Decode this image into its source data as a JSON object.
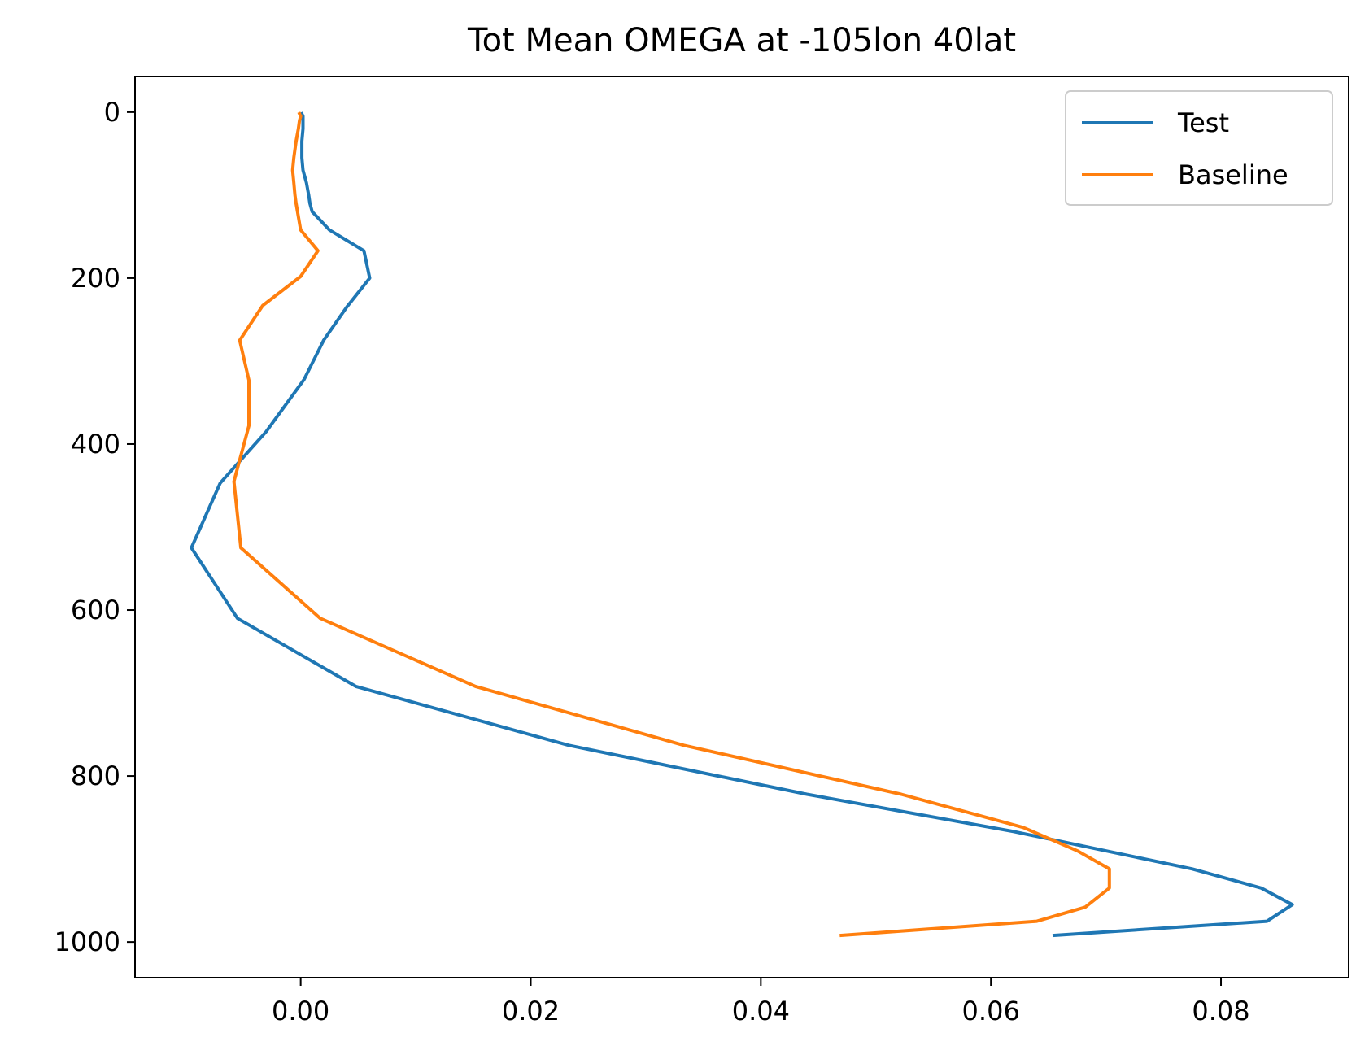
{
  "chart_data": {
    "type": "line",
    "title": "Tot Mean OMEGA at -105lon 40lat",
    "xlabel": "",
    "ylabel": "",
    "xlim": [
      -0.0144,
      0.0911
    ],
    "ylim": [
      1043,
      -43
    ],
    "y_inverted": true,
    "grid": false,
    "legend_position": "top-right",
    "x_ticks": [
      0.0,
      0.02,
      0.04,
      0.06,
      0.08
    ],
    "x_tick_labels": [
      "0.00",
      "0.02",
      "0.04",
      "0.06",
      "0.08"
    ],
    "y_ticks": [
      0,
      200,
      400,
      600,
      800,
      1000
    ],
    "y_tick_labels": [
      "0",
      "200",
      "400",
      "600",
      "800",
      "1000"
    ],
    "series": [
      {
        "name": "Test",
        "color": "#1f77b4",
        "x": [
          0.0001,
          0.0002,
          0.0002,
          0.0002,
          0.0001,
          0.0001,
          0.0002,
          0.0005,
          0.0007,
          0.0008,
          0.001,
          0.0025,
          0.0055,
          0.006,
          0.004,
          0.002,
          0.0003,
          -0.003,
          -0.007,
          -0.0095,
          -0.0055,
          0.0048,
          0.0233,
          0.044,
          0.062,
          0.0775,
          0.0835,
          0.0862,
          0.084,
          0.0655
        ],
        "y": [
          2,
          5,
          10,
          20,
          35,
          55,
          70,
          85,
          100,
          110,
          120,
          142,
          167,
          200,
          235,
          275,
          322,
          385,
          447,
          525,
          610,
          692,
          763,
          822,
          867,
          912,
          935,
          955,
          975,
          992
        ]
      },
      {
        "name": "Baseline",
        "color": "#ff7f0e",
        "x": [
          -0.0001,
          0.0,
          -0.0001,
          -0.0002,
          -0.0004,
          -0.0006,
          -0.0007,
          -0.0006,
          -0.0005,
          -0.0004,
          0.0,
          0.0015,
          0.0,
          -0.0033,
          -0.0053,
          -0.0045,
          -0.0045,
          -0.0058,
          -0.0052,
          0.0017,
          0.0152,
          0.0333,
          0.0522,
          0.0628,
          0.0675,
          0.0703,
          0.0703,
          0.0682,
          0.064,
          0.047
        ],
        "y": [
          2,
          5,
          10,
          20,
          35,
          55,
          70,
          85,
          100,
          110,
          142,
          167,
          198,
          233,
          275,
          323,
          378,
          445,
          525,
          610,
          692,
          763,
          822,
          862,
          890,
          912,
          935,
          958,
          975,
          992
        ]
      }
    ]
  }
}
